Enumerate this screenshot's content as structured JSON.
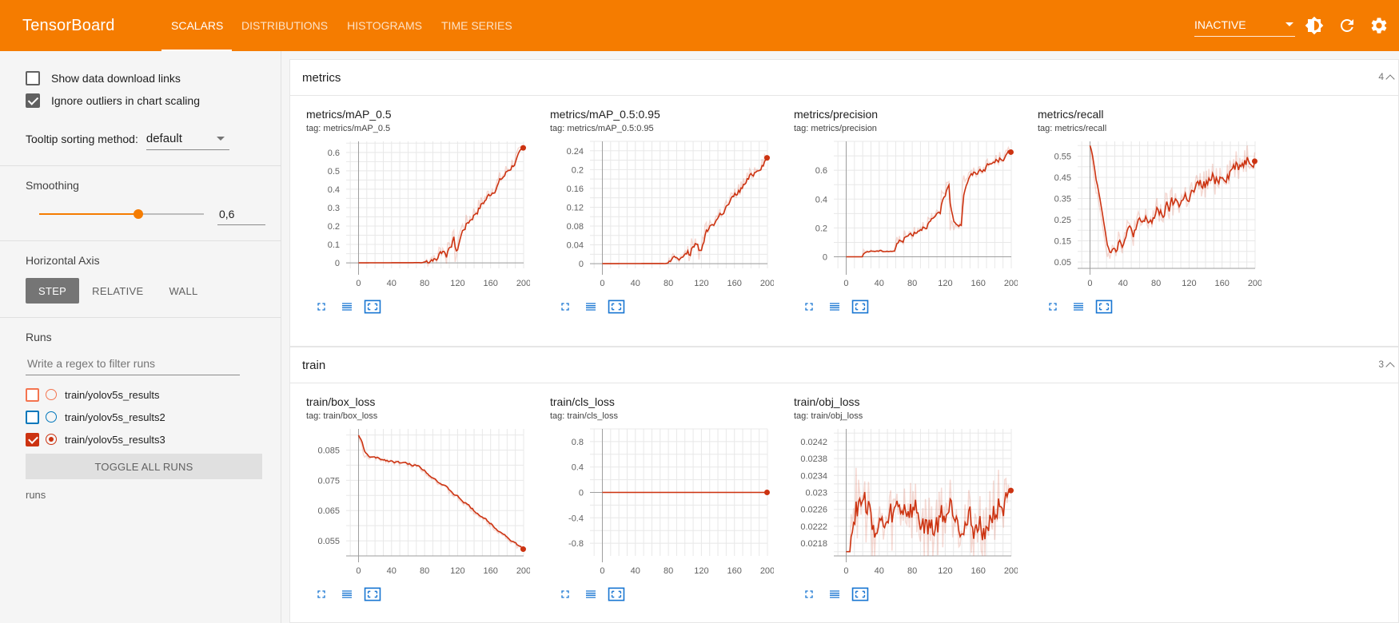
{
  "app": {
    "title": "TensorBoard",
    "tabs": [
      {
        "label": "SCALARS",
        "active": true
      },
      {
        "label": "DISTRIBUTIONS"
      },
      {
        "label": "HISTOGRAMS"
      },
      {
        "label": "TIME SERIES"
      }
    ],
    "status": "INACTIVE",
    "accent": "#f57c00",
    "icons": [
      "brightness-icon",
      "refresh-icon",
      "settings-icon"
    ]
  },
  "sidebar": {
    "show_download": {
      "label": "Show data download links",
      "checked": false
    },
    "ignore_outliers": {
      "label": "Ignore outliers in chart scaling",
      "checked": true
    },
    "tooltip_sort": {
      "label": "Tooltip sorting method:",
      "value": "default"
    },
    "smoothing": {
      "label": "Smoothing",
      "value": "0,6",
      "fraction": 0.6
    },
    "horizontal_axis": {
      "label": "Horizontal Axis",
      "options": [
        "STEP",
        "RELATIVE",
        "WALL"
      ],
      "active": "STEP"
    },
    "runs": {
      "label": "Runs",
      "filter_placeholder": "Write a regex to filter runs",
      "items": [
        {
          "name": "train/yolov5s_results",
          "color": "#f4744f",
          "checked": false
        },
        {
          "name": "train/yolov5s_results2",
          "color": "#0077bb",
          "checked": false
        },
        {
          "name": "train/yolov5s_results3",
          "color": "#cc3311",
          "checked": true
        }
      ],
      "toggle_label": "TOGGLE ALL RUNS",
      "note": "runs"
    }
  },
  "groups": [
    {
      "name": "metrics",
      "count": "4"
    },
    {
      "name": "train",
      "count": "3"
    }
  ],
  "charts": [
    {
      "title": "metrics/mAP_0.5",
      "tag": "tag: metrics/mAP_0.5",
      "group": 0,
      "col": 0,
      "xticks": [
        "0",
        "40",
        "80",
        "120",
        "160",
        "200"
      ],
      "yticks": [
        "0",
        "0.1",
        "0.2",
        "0.3",
        "0.4",
        "0.5",
        "0.6"
      ],
      "yrange": [
        -0.03,
        0.66
      ],
      "shape": "rise"
    },
    {
      "title": "metrics/mAP_0.5:0.95",
      "tag": "tag: metrics/mAP_0.5:0.95",
      "group": 0,
      "col": 1,
      "xticks": [
        "0",
        "40",
        "80",
        "120",
        "160",
        "200"
      ],
      "yticks": [
        "0",
        "0.04",
        "0.08",
        "0.12",
        "0.16",
        "0.2",
        "0.24"
      ],
      "yrange": [
        -0.01,
        0.26
      ],
      "shape": "rise"
    },
    {
      "title": "metrics/precision",
      "tag": "tag: metrics/precision",
      "group": 0,
      "col": 2,
      "xticks": [
        "0",
        "40",
        "80",
        "120",
        "160",
        "200"
      ],
      "yticks": [
        "0",
        "0.2",
        "0.4",
        "0.6"
      ],
      "yrange": [
        -0.08,
        0.8
      ],
      "shape": "precision"
    },
    {
      "title": "metrics/recall",
      "tag": "tag: metrics/recall",
      "group": 0,
      "col": 3,
      "xticks": [
        "0",
        "40",
        "80",
        "120",
        "160",
        "200"
      ],
      "yticks": [
        "0.05",
        "0.15",
        "0.25",
        "0.35",
        "0.45",
        "0.55"
      ],
      "yrange": [
        0.02,
        0.62
      ],
      "shape": "recall"
    },
    {
      "title": "train/box_loss",
      "tag": "tag: train/box_loss",
      "group": 1,
      "col": 0,
      "xticks": [
        "0",
        "40",
        "80",
        "120",
        "160",
        "200"
      ],
      "yticks": [
        "0.055",
        "0.065",
        "0.075",
        "0.085"
      ],
      "yrange": [
        0.05,
        0.092
      ],
      "shape": "decay"
    },
    {
      "title": "train/cls_loss",
      "tag": "tag: train/cls_loss",
      "group": 1,
      "col": 1,
      "xticks": [
        "0",
        "40",
        "80",
        "120",
        "160",
        "200"
      ],
      "yticks": [
        "-0.8",
        "-0.4",
        "0",
        "0.4",
        "0.8"
      ],
      "yrange": [
        -1.0,
        1.0
      ],
      "shape": "flat"
    },
    {
      "title": "train/obj_loss",
      "tag": "tag: train/obj_loss",
      "group": 1,
      "col": 2,
      "xticks": [
        "0",
        "40",
        "80",
        "120",
        "160",
        "200"
      ],
      "yticks": [
        "0.0218",
        "0.0222",
        "0.0226",
        "0.023",
        "0.0234",
        "0.0238",
        "0.0242"
      ],
      "yrange": [
        0.0215,
        0.0245
      ],
      "shape": "noise"
    }
  ],
  "chart_data": [
    {
      "type": "line",
      "title": "metrics/mAP_0.5",
      "xlim": [
        0,
        200
      ],
      "ylim": [
        -0.03,
        0.66
      ]
    },
    {
      "type": "line",
      "title": "metrics/mAP_0.5:0.95",
      "xlim": [
        0,
        200
      ],
      "ylim": [
        -0.01,
        0.26
      ]
    },
    {
      "type": "line",
      "title": "metrics/precision",
      "xlim": [
        0,
        200
      ],
      "ylim": [
        -0.08,
        0.8
      ]
    },
    {
      "type": "line",
      "title": "metrics/recall",
      "xlim": [
        0,
        200
      ],
      "ylim": [
        0.02,
        0.62
      ]
    },
    {
      "type": "line",
      "title": "train/box_loss",
      "xlim": [
        0,
        200
      ],
      "ylim": [
        0.05,
        0.092
      ]
    },
    {
      "type": "line",
      "title": "train/cls_loss",
      "xlim": [
        0,
        200
      ],
      "ylim": [
        -1.0,
        1.0
      ]
    },
    {
      "type": "line",
      "title": "train/obj_loss",
      "xlim": [
        0,
        200
      ],
      "ylim": [
        0.0215,
        0.0245
      ]
    }
  ]
}
